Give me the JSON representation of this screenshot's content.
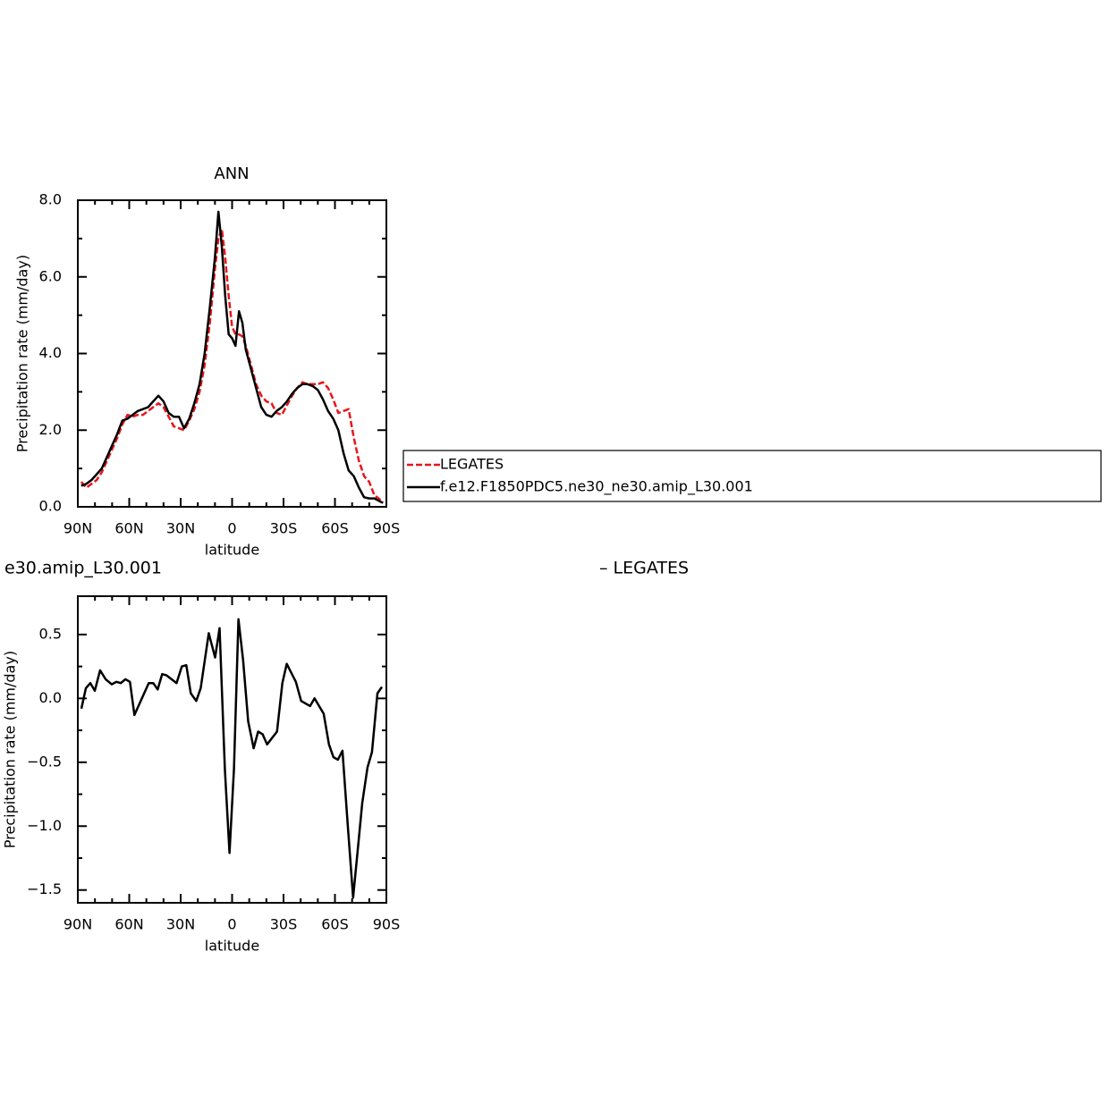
{
  "chart_data": [
    {
      "type": "line",
      "title": "ANN",
      "xlabel": "latitude",
      "ylabel": "Precipitation rate (mm/day)",
      "x": [
        88,
        85,
        82,
        79,
        76,
        73,
        70,
        67,
        64,
        61,
        58,
        55,
        52,
        49,
        46,
        43,
        40,
        37,
        34,
        31,
        28,
        25,
        22,
        19,
        16,
        13,
        10,
        8,
        6,
        4,
        2,
        0,
        -2,
        -4,
        -6,
        -8,
        -11,
        -14,
        -17,
        -20,
        -23,
        -26,
        -29,
        -32,
        -35,
        -38,
        -41,
        -44,
        -47,
        -50,
        -53,
        -56,
        -59,
        -62,
        -65,
        -68,
        -71,
        -74,
        -77,
        -80,
        -83,
        -86,
        -88
      ],
      "series": [
        {
          "name": "LEGATES",
          "color": "#e8151b",
          "style": "dashed",
          "values": [
            0.65,
            0.5,
            0.6,
            0.7,
            0.9,
            1.2,
            1.5,
            1.8,
            2.15,
            2.4,
            2.35,
            2.4,
            2.4,
            2.5,
            2.6,
            2.7,
            2.6,
            2.35,
            2.1,
            2.05,
            2.0,
            2.25,
            2.55,
            3.0,
            3.7,
            4.8,
            6.2,
            7.0,
            7.25,
            6.5,
            5.5,
            4.7,
            4.5,
            4.5,
            4.45,
            4.2,
            3.7,
            3.2,
            2.9,
            2.75,
            2.7,
            2.45,
            2.4,
            2.65,
            2.9,
            3.1,
            3.25,
            3.2,
            3.2,
            3.2,
            3.25,
            3.1,
            2.8,
            2.45,
            2.5,
            2.55,
            1.8,
            1.2,
            0.8,
            0.65,
            0.3,
            0.2,
            0.1
          ]
        },
        {
          "name": "f.e12.F1850PDC5.ne30_ne30.amip_L30.001",
          "color": "#000000",
          "style": "solid",
          "values": [
            0.55,
            0.6,
            0.7,
            0.85,
            1.0,
            1.3,
            1.6,
            1.9,
            2.25,
            2.3,
            2.4,
            2.5,
            2.55,
            2.6,
            2.75,
            2.9,
            2.75,
            2.45,
            2.35,
            2.35,
            2.05,
            2.3,
            2.7,
            3.2,
            4.0,
            5.2,
            6.5,
            7.7,
            6.8,
            5.5,
            4.5,
            4.4,
            4.2,
            5.1,
            4.8,
            4.1,
            3.6,
            3.1,
            2.6,
            2.4,
            2.35,
            2.5,
            2.6,
            2.75,
            2.95,
            3.1,
            3.2,
            3.2,
            3.15,
            3.05,
            2.8,
            2.5,
            2.3,
            2.0,
            1.4,
            0.95,
            0.8,
            0.5,
            0.25,
            0.22,
            0.22,
            0.15,
            0.1
          ]
        }
      ],
      "xlim": [
        90,
        -90
      ],
      "xticks": [
        {
          "value": 90,
          "label": "90N"
        },
        {
          "value": 60,
          "label": "60N"
        },
        {
          "value": 30,
          "label": "30N"
        },
        0,
        {
          "value": -30,
          "label": "30S"
        },
        {
          "value": -60,
          "label": "60S"
        },
        {
          "value": -90,
          "label": "90S"
        }
      ],
      "ylim": [
        0,
        8
      ],
      "yticks": [
        {
          "value": 0,
          "label": "0.0"
        },
        {
          "value": 2,
          "label": "2.0"
        },
        {
          "value": 4,
          "label": "4.0"
        },
        {
          "value": 6,
          "label": "6.0"
        },
        {
          "value": 8,
          "label": "8.0"
        }
      ],
      "legend": "right"
    },
    {
      "type": "line",
      "title_parts": [
        "e30.amip_L30.001",
        "– LEGATES"
      ],
      "xlabel": "latitude",
      "ylabel": "Precipitation rate (mm/day)",
      "x": [
        87.9,
        85.3,
        82.7,
        80.1,
        77,
        73.8,
        70.2,
        67.5,
        64.9,
        62.3,
        59.6,
        57,
        48.6,
        46,
        43.4,
        40.8,
        38.2,
        32.4,
        29.3,
        26.7,
        24.1,
        20.9,
        18.3,
        13.6,
        9.9,
        7.3,
        4.2,
        1.5,
        -1.1,
        -3.7,
        -6.4,
        -9.4,
        -12.6,
        -15.2,
        -17.8,
        -20.4,
        -26.2,
        -29.3,
        -31.9,
        -37.2,
        -40.3,
        -45.5,
        -48.1,
        -53.4,
        -56.5,
        -59.1,
        -61.7,
        -64.4,
        -67.5,
        -70.6,
        -73.2,
        -75.9,
        -79,
        -81.6,
        -84.8,
        -87.4
      ],
      "values": [
        -0.08,
        0.08,
        0.12,
        0.06,
        0.22,
        0.15,
        0.11,
        0.13,
        0.12,
        0.15,
        0.13,
        -0.13,
        0.12,
        0.12,
        0.07,
        0.19,
        0.18,
        0.12,
        0.25,
        0.26,
        0.04,
        -0.02,
        0.08,
        0.51,
        0.32,
        0.55,
        -0.55,
        -1.21,
        -0.55,
        0.62,
        0.3,
        -0.18,
        -0.39,
        -0.26,
        -0.28,
        -0.36,
        -0.26,
        0.12,
        0.27,
        0.13,
        -0.02,
        -0.06,
        0.0,
        -0.12,
        -0.36,
        -0.46,
        -0.48,
        -0.41,
        -1.0,
        -1.56,
        -1.2,
        -0.82,
        -0.54,
        -0.42,
        0.04,
        0.09
      ],
      "color": "#000000",
      "xlim": [
        90,
        -90
      ],
      "xticks": [
        {
          "value": 90,
          "label": "90N"
        },
        {
          "value": 60,
          "label": "60N"
        },
        {
          "value": 30,
          "label": "30N"
        },
        0,
        {
          "value": -30,
          "label": "30S"
        },
        {
          "value": -60,
          "label": "60S"
        },
        {
          "value": -90,
          "label": "90S"
        }
      ],
      "ylim": [
        -1.6,
        0.8
      ],
      "yticks": [
        0.5,
        {
          "value": 0,
          "label": "0.0"
        },
        {
          "value": -0.5,
          "label": "−0.5"
        },
        {
          "value": -1,
          "label": "−1.0"
        },
        {
          "value": -1.5,
          "label": "−1.5"
        }
      ]
    }
  ]
}
